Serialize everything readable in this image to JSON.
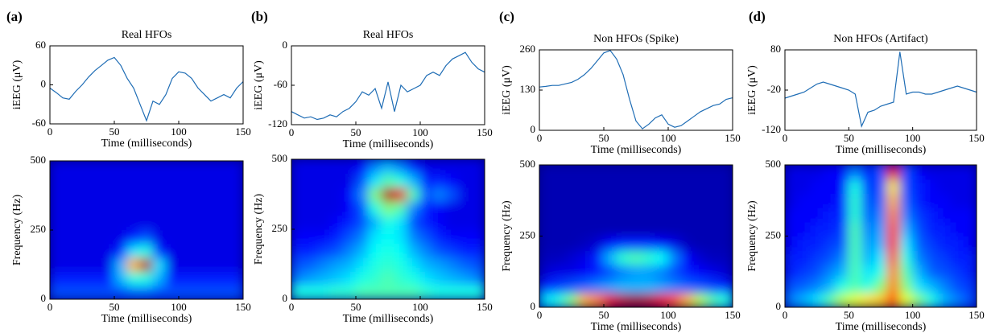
{
  "chart_data": [
    {
      "type": "line",
      "panel_label": "(a)",
      "title": "Real HFOs",
      "xlabel": "Time (milliseconds)",
      "ylabel": "iEEG (μV)",
      "color": "#1f6db5",
      "x": [
        0,
        5,
        10,
        15,
        20,
        25,
        30,
        35,
        40,
        45,
        50,
        55,
        60,
        65,
        70,
        75,
        80,
        85,
        90,
        95,
        100,
        105,
        110,
        115,
        120,
        125,
        130,
        135,
        140,
        145,
        150
      ],
      "values": [
        -5,
        -12,
        -20,
        -22,
        -10,
        0,
        12,
        22,
        30,
        38,
        42,
        30,
        10,
        -5,
        -30,
        -55,
        -25,
        -30,
        -15,
        10,
        20,
        18,
        10,
        -5,
        -15,
        -25,
        -20,
        -15,
        -20,
        -5,
        5
      ],
      "xlim": [
        0,
        150
      ],
      "xticks": [
        0,
        50,
        100,
        150
      ],
      "ylim": [
        -60,
        60
      ],
      "yticks": [
        -60,
        0,
        60
      ]
    },
    {
      "type": "heatmap",
      "xlabel": "Time (milliseconds)",
      "ylabel": "Frequency (Hz)",
      "colormap": "jet",
      "xbins": [
        0,
        10,
        20,
        30,
        40,
        50,
        60,
        70,
        80,
        90,
        100,
        110,
        120,
        130,
        140,
        150
      ],
      "ybins": [
        0,
        50,
        100,
        150,
        200,
        250,
        300,
        350,
        400,
        450,
        500
      ],
      "z": [
        [
          0.2,
          0.2,
          0.2,
          0.2,
          0.2,
          0.2,
          0.22,
          0.22,
          0.2,
          0.2,
          0.2,
          0.2,
          0.2,
          0.2,
          0.2
        ],
        [
          0.15,
          0.15,
          0.15,
          0.15,
          0.15,
          0.3,
          0.4,
          0.4,
          0.3,
          0.15,
          0.15,
          0.15,
          0.15,
          0.15,
          0.15
        ],
        [
          0.1,
          0.1,
          0.1,
          0.1,
          0.1,
          0.3,
          0.7,
          0.95,
          0.35,
          0.1,
          0.1,
          0.1,
          0.1,
          0.1,
          0.1
        ],
        [
          0.1,
          0.1,
          0.1,
          0.1,
          0.1,
          0.15,
          0.35,
          0.4,
          0.15,
          0.1,
          0.1,
          0.1,
          0.1,
          0.1,
          0.1
        ],
        [
          0.1,
          0.1,
          0.1,
          0.1,
          0.1,
          0.1,
          0.15,
          0.2,
          0.1,
          0.1,
          0.1,
          0.1,
          0.1,
          0.1,
          0.1
        ],
        [
          0.1,
          0.1,
          0.1,
          0.1,
          0.1,
          0.1,
          0.1,
          0.1,
          0.1,
          0.1,
          0.1,
          0.1,
          0.1,
          0.1,
          0.1
        ],
        [
          0.1,
          0.1,
          0.1,
          0.1,
          0.1,
          0.1,
          0.1,
          0.1,
          0.1,
          0.1,
          0.1,
          0.1,
          0.1,
          0.1,
          0.1
        ],
        [
          0.1,
          0.1,
          0.1,
          0.1,
          0.1,
          0.1,
          0.1,
          0.1,
          0.1,
          0.1,
          0.1,
          0.1,
          0.1,
          0.1,
          0.1
        ],
        [
          0.1,
          0.1,
          0.1,
          0.1,
          0.1,
          0.1,
          0.1,
          0.1,
          0.1,
          0.1,
          0.1,
          0.1,
          0.1,
          0.1,
          0.1
        ],
        [
          0.1,
          0.1,
          0.1,
          0.1,
          0.1,
          0.1,
          0.1,
          0.1,
          0.1,
          0.1,
          0.1,
          0.1,
          0.1,
          0.1,
          0.1
        ]
      ],
      "xlim": [
        0,
        150
      ],
      "xticks": [
        0,
        50,
        100,
        150
      ],
      "ylim": [
        0,
        500
      ],
      "yticks": [
        0,
        250,
        500
      ]
    },
    {
      "type": "line",
      "panel_label": "(b)",
      "title": "Real HFOs",
      "xlabel": "Time (milliseconds)",
      "ylabel": "iEEG (μV)",
      "color": "#1f6db5",
      "x": [
        0,
        5,
        10,
        15,
        20,
        25,
        30,
        35,
        40,
        45,
        50,
        55,
        60,
        65,
        70,
        75,
        80,
        85,
        90,
        95,
        100,
        105,
        110,
        115,
        120,
        125,
        130,
        135,
        140,
        145,
        150
      ],
      "values": [
        -100,
        -105,
        -110,
        -108,
        -112,
        -110,
        -105,
        -108,
        -100,
        -95,
        -85,
        -70,
        -75,
        -65,
        -95,
        -55,
        -100,
        -60,
        -70,
        -65,
        -60,
        -45,
        -40,
        -45,
        -30,
        -20,
        -15,
        -10,
        -25,
        -35,
        -40
      ],
      "xlim": [
        0,
        150
      ],
      "xticks": [
        0,
        50,
        100,
        150
      ],
      "ylim": [
        -120,
        0
      ],
      "yticks": [
        -120,
        -60,
        0
      ]
    },
    {
      "type": "heatmap",
      "xlabel": "Time (milliseconds)",
      "ylabel": "Frequency (Hz)",
      "colormap": "jet",
      "xbins": [
        0,
        10,
        20,
        30,
        40,
        50,
        60,
        70,
        80,
        90,
        100,
        110,
        120,
        130,
        140,
        150
      ],
      "ybins": [
        0,
        50,
        100,
        150,
        200,
        250,
        300,
        350,
        400,
        450,
        500
      ],
      "z": [
        [
          0.4,
          0.4,
          0.4,
          0.42,
          0.42,
          0.45,
          0.45,
          0.45,
          0.45,
          0.45,
          0.42,
          0.4,
          0.4,
          0.4,
          0.4
        ],
        [
          0.25,
          0.28,
          0.3,
          0.32,
          0.35,
          0.4,
          0.42,
          0.45,
          0.42,
          0.4,
          0.35,
          0.32,
          0.3,
          0.28,
          0.25
        ],
        [
          0.2,
          0.22,
          0.25,
          0.28,
          0.3,
          0.35,
          0.4,
          0.42,
          0.4,
          0.35,
          0.3,
          0.28,
          0.25,
          0.22,
          0.2
        ],
        [
          0.15,
          0.15,
          0.18,
          0.2,
          0.25,
          0.3,
          0.38,
          0.4,
          0.38,
          0.3,
          0.25,
          0.2,
          0.18,
          0.15,
          0.15
        ],
        [
          0.12,
          0.12,
          0.12,
          0.15,
          0.2,
          0.25,
          0.35,
          0.38,
          0.35,
          0.25,
          0.2,
          0.15,
          0.12,
          0.12,
          0.12
        ],
        [
          0.1,
          0.1,
          0.1,
          0.12,
          0.15,
          0.2,
          0.3,
          0.4,
          0.35,
          0.2,
          0.15,
          0.12,
          0.1,
          0.1,
          0.1
        ],
        [
          0.1,
          0.1,
          0.1,
          0.1,
          0.12,
          0.2,
          0.4,
          0.5,
          0.45,
          0.25,
          0.15,
          0.12,
          0.1,
          0.1,
          0.1
        ],
        [
          0.1,
          0.1,
          0.1,
          0.1,
          0.12,
          0.25,
          0.5,
          0.95,
          0.9,
          0.45,
          0.2,
          0.25,
          0.2,
          0.1,
          0.1
        ],
        [
          0.1,
          0.1,
          0.1,
          0.1,
          0.1,
          0.2,
          0.35,
          0.45,
          0.4,
          0.3,
          0.15,
          0.15,
          0.12,
          0.1,
          0.1
        ],
        [
          0.1,
          0.1,
          0.1,
          0.1,
          0.1,
          0.12,
          0.25,
          0.3,
          0.25,
          0.15,
          0.1,
          0.1,
          0.1,
          0.1,
          0.1
        ]
      ],
      "xlim": [
        0,
        150
      ],
      "xticks": [
        0,
        50,
        100,
        150
      ],
      "ylim": [
        0,
        500
      ],
      "yticks": [
        0,
        250,
        500
      ]
    },
    {
      "type": "line",
      "panel_label": "(c)",
      "title": "Non HFOs (Spike)",
      "xlabel": "Time (milliseconds)",
      "ylabel": "iEEG (μV)",
      "color": "#1f6db5",
      "x": [
        0,
        5,
        10,
        15,
        20,
        25,
        30,
        35,
        40,
        45,
        50,
        55,
        60,
        65,
        70,
        75,
        80,
        85,
        90,
        95,
        100,
        105,
        110,
        115,
        120,
        125,
        130,
        135,
        140,
        145,
        150
      ],
      "values": [
        140,
        142,
        145,
        145,
        150,
        155,
        165,
        180,
        200,
        225,
        250,
        258,
        230,
        180,
        100,
        30,
        5,
        20,
        40,
        50,
        20,
        10,
        15,
        30,
        45,
        60,
        70,
        80,
        85,
        100,
        105
      ],
      "xlim": [
        0,
        150
      ],
      "xticks": [
        0,
        50,
        100,
        150
      ],
      "ylim": [
        0,
        260
      ],
      "yticks": [
        0,
        130,
        260
      ]
    },
    {
      "type": "heatmap",
      "xlabel": "Time (milliseconds)",
      "ylabel": "Frequency (Hz)",
      "colormap": "jet",
      "xbins": [
        0,
        10,
        20,
        30,
        40,
        50,
        60,
        70,
        80,
        90,
        100,
        110,
        120,
        130,
        140,
        150
      ],
      "ybins": [
        0,
        50,
        100,
        150,
        200,
        250,
        300,
        350,
        400,
        450,
        500
      ],
      "z": [
        [
          0.35,
          0.4,
          0.5,
          0.7,
          0.75,
          0.9,
          0.95,
          0.97,
          0.95,
          0.9,
          0.8,
          0.7,
          0.55,
          0.45,
          0.4
        ],
        [
          0.15,
          0.18,
          0.2,
          0.22,
          0.25,
          0.28,
          0.3,
          0.3,
          0.3,
          0.28,
          0.25,
          0.22,
          0.2,
          0.18,
          0.15
        ],
        [
          0.08,
          0.1,
          0.1,
          0.12,
          0.15,
          0.2,
          0.25,
          0.28,
          0.28,
          0.25,
          0.2,
          0.15,
          0.12,
          0.1,
          0.08
        ],
        [
          0.06,
          0.06,
          0.08,
          0.1,
          0.15,
          0.3,
          0.42,
          0.45,
          0.42,
          0.38,
          0.25,
          0.12,
          0.08,
          0.06,
          0.06
        ],
        [
          0.05,
          0.05,
          0.05,
          0.06,
          0.08,
          0.12,
          0.15,
          0.15,
          0.15,
          0.12,
          0.1,
          0.06,
          0.05,
          0.05,
          0.05
        ],
        [
          0.05,
          0.05,
          0.05,
          0.05,
          0.05,
          0.05,
          0.05,
          0.05,
          0.05,
          0.05,
          0.05,
          0.05,
          0.05,
          0.05,
          0.05
        ],
        [
          0.05,
          0.05,
          0.05,
          0.05,
          0.05,
          0.05,
          0.05,
          0.05,
          0.05,
          0.05,
          0.05,
          0.05,
          0.05,
          0.05,
          0.05
        ],
        [
          0.05,
          0.05,
          0.05,
          0.05,
          0.05,
          0.05,
          0.05,
          0.05,
          0.05,
          0.05,
          0.05,
          0.05,
          0.05,
          0.05,
          0.05
        ],
        [
          0.05,
          0.05,
          0.05,
          0.05,
          0.05,
          0.05,
          0.05,
          0.05,
          0.05,
          0.05,
          0.05,
          0.05,
          0.05,
          0.05,
          0.05
        ],
        [
          0.05,
          0.05,
          0.05,
          0.05,
          0.05,
          0.05,
          0.05,
          0.05,
          0.05,
          0.05,
          0.05,
          0.05,
          0.05,
          0.05,
          0.05
        ]
      ],
      "xlim": [
        0,
        150
      ],
      "xticks": [
        0,
        50,
        100,
        150
      ],
      "ylim": [
        0,
        500
      ],
      "yticks": [
        0,
        250,
        500
      ]
    },
    {
      "type": "line",
      "panel_label": "(d)",
      "title": "Non HFOs (Artifact)",
      "xlabel": "Time (milliseconds)",
      "ylabel": "iEEG (μV)",
      "color": "#1f6db5",
      "x": [
        0,
        5,
        10,
        15,
        20,
        25,
        30,
        35,
        40,
        45,
        50,
        55,
        60,
        65,
        70,
        75,
        80,
        85,
        90,
        95,
        100,
        105,
        110,
        115,
        120,
        125,
        130,
        135,
        140,
        145,
        150
      ],
      "values": [
        -40,
        -35,
        -30,
        -25,
        -15,
        -5,
        0,
        -5,
        -10,
        -15,
        -20,
        -30,
        -110,
        -75,
        -70,
        -60,
        -55,
        -50,
        75,
        -30,
        -25,
        -25,
        -30,
        -30,
        -25,
        -20,
        -15,
        -10,
        -15,
        -20,
        -25
      ],
      "xlim": [
        0,
        150
      ],
      "xticks": [
        0,
        50,
        100,
        150
      ],
      "ylim": [
        -120,
        80
      ],
      "yticks": [
        -120,
        -20,
        80
      ]
    },
    {
      "type": "heatmap",
      "xlabel": "Time (milliseconds)",
      "ylabel": "Frequency (Hz)",
      "colormap": "jet",
      "xbins": [
        0,
        10,
        20,
        30,
        40,
        50,
        60,
        70,
        80,
        90,
        100,
        110,
        120,
        130,
        140,
        150
      ],
      "ybins": [
        0,
        50,
        100,
        150,
        200,
        250,
        300,
        350,
        400,
        450,
        500
      ],
      "z": [
        [
          0.25,
          0.3,
          0.35,
          0.45,
          0.55,
          0.6,
          0.65,
          0.68,
          0.8,
          0.6,
          0.5,
          0.4,
          0.3,
          0.25,
          0.2
        ],
        [
          0.2,
          0.22,
          0.25,
          0.3,
          0.4,
          0.45,
          0.4,
          0.5,
          0.75,
          0.5,
          0.35,
          0.3,
          0.25,
          0.2,
          0.18
        ],
        [
          0.15,
          0.18,
          0.2,
          0.25,
          0.3,
          0.45,
          0.35,
          0.4,
          0.75,
          0.45,
          0.3,
          0.22,
          0.2,
          0.18,
          0.15
        ],
        [
          0.15,
          0.15,
          0.18,
          0.2,
          0.25,
          0.45,
          0.3,
          0.35,
          0.8,
          0.4,
          0.25,
          0.2,
          0.18,
          0.15,
          0.15
        ],
        [
          0.12,
          0.15,
          0.15,
          0.18,
          0.2,
          0.45,
          0.28,
          0.3,
          0.85,
          0.35,
          0.22,
          0.18,
          0.15,
          0.15,
          0.12
        ],
        [
          0.12,
          0.12,
          0.15,
          0.15,
          0.18,
          0.45,
          0.25,
          0.28,
          0.8,
          0.3,
          0.2,
          0.15,
          0.15,
          0.12,
          0.12
        ],
        [
          0.12,
          0.12,
          0.12,
          0.15,
          0.15,
          0.42,
          0.22,
          0.25,
          0.75,
          0.25,
          0.18,
          0.15,
          0.12,
          0.12,
          0.12
        ],
        [
          0.1,
          0.12,
          0.12,
          0.12,
          0.15,
          0.42,
          0.2,
          0.22,
          0.7,
          0.22,
          0.15,
          0.12,
          0.12,
          0.1,
          0.1
        ],
        [
          0.1,
          0.1,
          0.12,
          0.12,
          0.12,
          0.4,
          0.18,
          0.2,
          0.65,
          0.2,
          0.15,
          0.12,
          0.1,
          0.1,
          0.1
        ],
        [
          0.1,
          0.1,
          0.1,
          0.12,
          0.12,
          0.25,
          0.15,
          0.2,
          0.9,
          0.2,
          0.12,
          0.1,
          0.1,
          0.1,
          0.1
        ]
      ],
      "xlim": [
        0,
        150
      ],
      "xticks": [
        0,
        50,
        100,
        150
      ],
      "ylim": [
        0,
        500
      ],
      "yticks": [
        0,
        250,
        500
      ]
    }
  ]
}
